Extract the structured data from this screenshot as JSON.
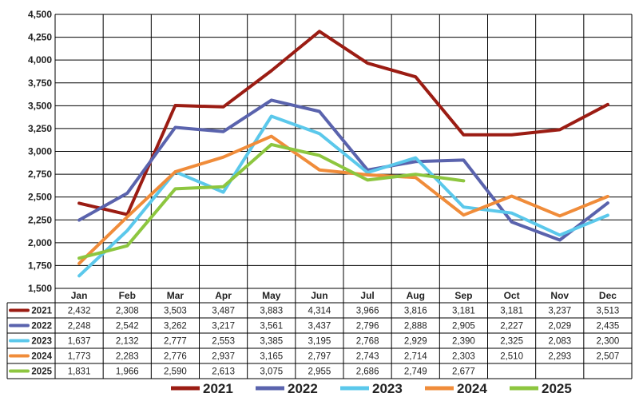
{
  "chart_data": {
    "type": "line",
    "title": "",
    "xlabel": "",
    "ylabel": "",
    "categories": [
      "Jan",
      "Feb",
      "Mar",
      "Apr",
      "May",
      "Jun",
      "Jul",
      "Aug",
      "Sep",
      "Oct",
      "Nov",
      "Dec"
    ],
    "ylim": [
      1500,
      4500
    ],
    "yticks": [
      1500,
      1750,
      2000,
      2250,
      2500,
      2750,
      3000,
      3250,
      3500,
      3750,
      4000,
      4250,
      4500
    ],
    "ytick_labels": [
      "1,500",
      "1,750",
      "2,000",
      "2,250",
      "2,500",
      "2,750",
      "3,000",
      "3,250",
      "3,500",
      "3,750",
      "4,000",
      "4,250",
      "4,500"
    ],
    "grid": true,
    "legend_position": "bottom",
    "series": [
      {
        "name": "2021",
        "color": "#9b1c13",
        "values": [
          2432,
          2308,
          3503,
          3487,
          3883,
          4314,
          3966,
          3816,
          3181,
          3181,
          3237,
          3513
        ],
        "labels": [
          "2,432",
          "2,308",
          "3,503",
          "3,487",
          "3,883",
          "4,314",
          "3,966",
          "3,816",
          "3,181",
          "3,181",
          "3,237",
          "3,513"
        ]
      },
      {
        "name": "2022",
        "color": "#5a63ad",
        "values": [
          2248,
          2542,
          3262,
          3217,
          3561,
          3437,
          2796,
          2888,
          2905,
          2227,
          2029,
          2435
        ],
        "labels": [
          "2,248",
          "2,542",
          "3,262",
          "3,217",
          "3,561",
          "3,437",
          "2,796",
          "2,888",
          "2,905",
          "2,227",
          "2,029",
          "2,435"
        ]
      },
      {
        "name": "2023",
        "color": "#5bc8eb",
        "values": [
          1637,
          2132,
          2777,
          2553,
          3385,
          3195,
          2768,
          2929,
          2390,
          2325,
          2083,
          2300
        ],
        "labels": [
          "1,637",
          "2,132",
          "2,777",
          "2,553",
          "3,385",
          "3,195",
          "2,768",
          "2,929",
          "2,390",
          "2,325",
          "2,083",
          "2,300"
        ]
      },
      {
        "name": "2024",
        "color": "#f08c3a",
        "values": [
          1773,
          2283,
          2776,
          2937,
          3165,
          2797,
          2743,
          2714,
          2303,
          2510,
          2293,
          2507
        ],
        "labels": [
          "1,773",
          "2,283",
          "2,776",
          "2,937",
          "3,165",
          "2,797",
          "2,743",
          "2,714",
          "2,303",
          "2,510",
          "2,293",
          "2,507"
        ]
      },
      {
        "name": "2025",
        "color": "#8dc63f",
        "values": [
          1831,
          1966,
          2590,
          2613,
          3075,
          2955,
          2686,
          2749,
          2677,
          null,
          null,
          null
        ],
        "labels": [
          "1,831",
          "1,966",
          "2,590",
          "2,613",
          "3,075",
          "2,955",
          "2,686",
          "2,749",
          "2,677",
          "",
          "",
          ""
        ]
      }
    ]
  }
}
